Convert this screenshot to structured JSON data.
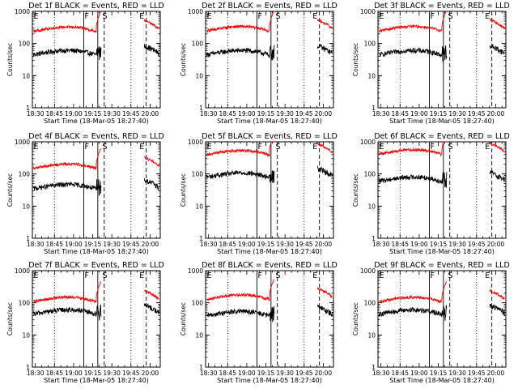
{
  "chart_data": [
    {
      "type": "line",
      "title": "Det 1f BLACK = Events, RED = LLD",
      "xlabel": "Start Time (18-Mar-05 18:27:40)",
      "ylabel": "Counts/sec",
      "x_tick_labels": [
        "18:30",
        "18:45",
        "19:00",
        "19:15",
        "19:30",
        "19:45",
        "20:00"
      ],
      "y_tick_labels": [
        "1",
        "10",
        "100",
        "1000"
      ],
      "markers": [
        "E",
        "F",
        "S",
        "E"
      ],
      "xlim": [
        "18:27:40",
        "20:08:00"
      ],
      "ylim": [
        1,
        1000
      ],
      "y_scale": "log",
      "event_level": 45,
      "lld_level": 240,
      "series": [
        {
          "color": "#000000"
        },
        {
          "color": "#ff0000"
        }
      ]
    },
    {
      "type": "line",
      "title": "Det 2f BLACK = Events, RED = LLD",
      "xlabel": "Start Time (18-Mar-05 18:27:40)",
      "ylabel": "Counts/sec",
      "x_tick_labels": [
        "18:30",
        "18:45",
        "19:00",
        "19:15",
        "19:30",
        "19:45",
        "20:00"
      ],
      "y_tick_labels": [
        "1",
        "10",
        "100",
        "1000"
      ],
      "markers": [
        "E",
        "F",
        "S",
        "E"
      ],
      "xlim": [
        "18:27:40",
        "20:08:00"
      ],
      "ylim": [
        1,
        1000
      ],
      "y_scale": "log",
      "event_level": 45,
      "lld_level": 250,
      "series": [
        {
          "color": "#000000"
        },
        {
          "color": "#ff0000"
        }
      ]
    },
    {
      "type": "line",
      "title": "Det 3f BLACK = Events, RED = LLD",
      "xlabel": "Start Time (18-Mar-05 18:27:40)",
      "ylabel": "Counts/sec",
      "x_tick_labels": [
        "18:30",
        "18:45",
        "19:00",
        "19:15",
        "19:30",
        "19:45",
        "20:00"
      ],
      "y_tick_labels": [
        "1",
        "10",
        "100",
        "1000"
      ],
      "markers": [
        "E",
        "F",
        "S",
        "E"
      ],
      "xlim": [
        "18:27:40",
        "20:08:00"
      ],
      "ylim": [
        1,
        1000
      ],
      "y_scale": "log",
      "event_level": 45,
      "lld_level": 250,
      "series": [
        {
          "color": "#000000"
        },
        {
          "color": "#ff0000"
        }
      ]
    },
    {
      "type": "line",
      "title": "Det 4f BLACK = Events, RED = LLD",
      "xlabel": "Start Time (18-Mar-05 18:27:40)",
      "ylabel": "Counts/sec",
      "x_tick_labels": [
        "18:30",
        "18:45",
        "19:00",
        "19:15",
        "19:30",
        "19:45",
        "20:00"
      ],
      "y_tick_labels": [
        "1",
        "10",
        "100",
        "1000"
      ],
      "markers": [
        "E",
        "F",
        "S",
        "E"
      ],
      "xlim": [
        "18:27:40",
        "20:08:00"
      ],
      "ylim": [
        1,
        1000
      ],
      "y_scale": "log",
      "event_level": 35,
      "lld_level": 150,
      "series": [
        {
          "color": "#000000"
        },
        {
          "color": "#ff0000"
        }
      ]
    },
    {
      "type": "line",
      "title": "Det 5f BLACK = Events, RED = LLD",
      "xlabel": "Start Time (18-Mar-05 18:27:40)",
      "ylabel": "Counts/sec",
      "x_tick_labels": [
        "18:30",
        "18:45",
        "19:00",
        "19:15",
        "19:30",
        "19:45",
        "20:00"
      ],
      "y_tick_labels": [
        "1",
        "10",
        "100",
        "1000"
      ],
      "markers": [
        "E",
        "F",
        "S",
        "E"
      ],
      "xlim": [
        "18:27:40",
        "20:08:00"
      ],
      "ylim": [
        1,
        1000
      ],
      "y_scale": "log",
      "event_level": 80,
      "lld_level": 400,
      "series": [
        {
          "color": "#000000"
        },
        {
          "color": "#ff0000"
        }
      ]
    },
    {
      "type": "line",
      "title": "Det 6f BLACK = Events, RED = LLD",
      "xlabel": "Start Time (18-Mar-05 18:27:40)",
      "ylabel": "Counts/sec",
      "x_tick_labels": [
        "18:30",
        "18:45",
        "19:00",
        "19:15",
        "19:30",
        "19:45",
        "20:00"
      ],
      "y_tick_labels": [
        "1",
        "10",
        "100",
        "1000"
      ],
      "markers": [
        "E",
        "F",
        "S",
        "E"
      ],
      "xlim": [
        "18:27:40",
        "20:08:00"
      ],
      "ylim": [
        1,
        1000
      ],
      "y_scale": "log",
      "event_level": 60,
      "lld_level": 420,
      "series": [
        {
          "color": "#000000"
        },
        {
          "color": "#ff0000"
        }
      ]
    },
    {
      "type": "line",
      "title": "Det 7f BLACK = Events, RED = LLD",
      "xlabel": "Start Time (18-Mar-05 18:27:40)",
      "ylabel": "Counts/sec",
      "x_tick_labels": [
        "18:30",
        "18:45",
        "19:00",
        "19:15",
        "19:30",
        "19:45",
        "20:00"
      ],
      "y_tick_labels": [
        "1",
        "10",
        "100",
        "1000"
      ],
      "markers": [
        "E",
        "F",
        "S",
        "E"
      ],
      "xlim": [
        "18:27:40",
        "20:08:00"
      ],
      "ylim": [
        1,
        1000
      ],
      "y_scale": "log",
      "event_level": 45,
      "lld_level": 110,
      "series": [
        {
          "color": "#000000"
        },
        {
          "color": "#ff0000"
        }
      ]
    },
    {
      "type": "line",
      "title": "Det 8f BLACK = Events, RED = LLD",
      "xlabel": "Start Time (18-Mar-05 18:27:40)",
      "ylabel": "Counts/sec",
      "x_tick_labels": [
        "18:30",
        "18:45",
        "19:00",
        "19:15",
        "19:30",
        "19:45",
        "20:00"
      ],
      "y_tick_labels": [
        "1",
        "10",
        "100",
        "1000"
      ],
      "markers": [
        "E",
        "F",
        "S",
        "E"
      ],
      "xlim": [
        "18:27:40",
        "20:08:00"
      ],
      "ylim": [
        1,
        1000
      ],
      "y_scale": "log",
      "event_level": 40,
      "lld_level": 130,
      "series": [
        {
          "color": "#000000"
        },
        {
          "color": "#ff0000"
        }
      ]
    },
    {
      "type": "line",
      "title": "Det 9f BLACK = Events, RED = LLD",
      "xlabel": "Start Time (18-Mar-05 18:27:40)",
      "ylabel": "Counts/sec",
      "x_tick_labels": [
        "18:30",
        "18:45",
        "19:00",
        "19:15",
        "19:30",
        "19:45",
        "20:00"
      ],
      "y_tick_labels": [
        "1",
        "10",
        "100",
        "1000"
      ],
      "markers": [
        "E",
        "F",
        "S",
        "E"
      ],
      "xlim": [
        "18:27:40",
        "20:08:00"
      ],
      "ylim": [
        1,
        1000
      ],
      "y_scale": "log",
      "event_level": 45,
      "lld_level": 110,
      "series": [
        {
          "color": "#000000"
        },
        {
          "color": "#ff0000"
        }
      ]
    }
  ]
}
